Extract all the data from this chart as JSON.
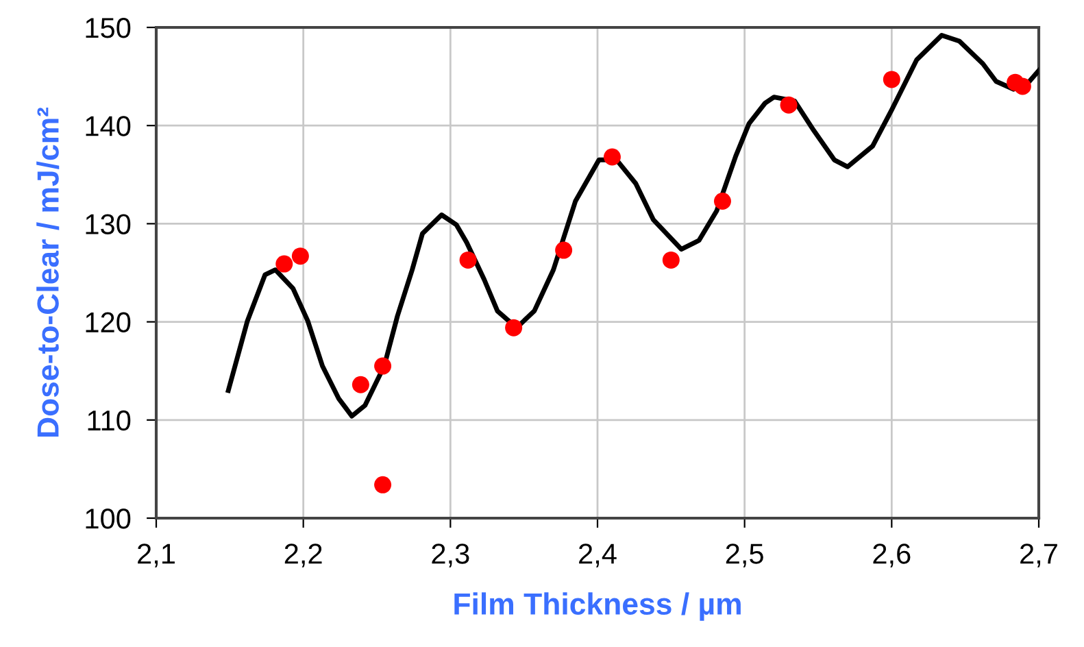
{
  "chart_data": {
    "type": "line",
    "xlabel": "Film Thickness / µm",
    "ylabel": "Dose-to-Clear / mJ/cm²",
    "xlim": [
      2.1,
      2.7
    ],
    "ylim": [
      100,
      150
    ],
    "xticks": [
      {
        "value": 2.1,
        "label": "2,1"
      },
      {
        "value": 2.2,
        "label": "2,2"
      },
      {
        "value": 2.3,
        "label": "2,3"
      },
      {
        "value": 2.4,
        "label": "2,4"
      },
      {
        "value": 2.5,
        "label": "2,5"
      },
      {
        "value": 2.6,
        "label": "2,6"
      },
      {
        "value": 2.7,
        "label": "2,7"
      }
    ],
    "yticks": [
      100,
      110,
      120,
      130,
      140,
      150
    ],
    "grid": true,
    "series": [
      {
        "color": "#000000",
        "marker": "none",
        "line_style": "solid",
        "x": [
          2.149,
          2.162,
          2.174,
          2.181,
          2.193,
          2.203,
          2.213,
          2.224,
          2.233,
          2.242,
          2.255,
          2.264,
          2.274,
          2.281,
          2.294,
          2.304,
          2.311,
          2.323,
          2.332,
          2.345,
          2.357,
          2.37,
          2.385,
          2.401,
          2.413,
          2.426,
          2.438,
          2.457,
          2.469,
          2.481,
          2.494,
          2.503,
          2.514,
          2.52,
          2.534,
          2.547,
          2.561,
          2.57,
          2.587,
          2.6,
          2.617,
          2.634,
          2.646,
          2.662,
          2.671,
          2.683,
          2.693,
          2.7
        ],
        "values": [
          113.0,
          120.1,
          124.8,
          125.3,
          123.4,
          120.1,
          115.5,
          112.2,
          110.4,
          111.5,
          115.5,
          120.6,
          125.3,
          129.0,
          130.9,
          129.9,
          128.1,
          124.3,
          121.1,
          119.4,
          121.1,
          125.3,
          132.3,
          136.5,
          136.5,
          134.1,
          130.4,
          127.4,
          128.3,
          131.3,
          136.9,
          140.2,
          142.3,
          142.9,
          142.5,
          139.5,
          136.5,
          135.8,
          137.9,
          141.6,
          146.7,
          149.2,
          148.6,
          146.3,
          144.5,
          143.7,
          144.4,
          145.6
        ]
      },
      {
        "type": "scatter",
        "color": "#ff0000",
        "marker": "circle",
        "x": [
          2.187,
          2.198,
          2.239,
          2.254,
          2.254,
          2.312,
          2.343,
          2.377,
          2.41,
          2.45,
          2.485,
          2.53,
          2.6,
          2.684,
          2.689
        ],
        "values": [
          125.9,
          126.7,
          113.6,
          115.5,
          103.4,
          126.3,
          119.4,
          127.3,
          136.8,
          126.3,
          132.3,
          142.1,
          144.7,
          144.4,
          144.0
        ]
      }
    ]
  }
}
